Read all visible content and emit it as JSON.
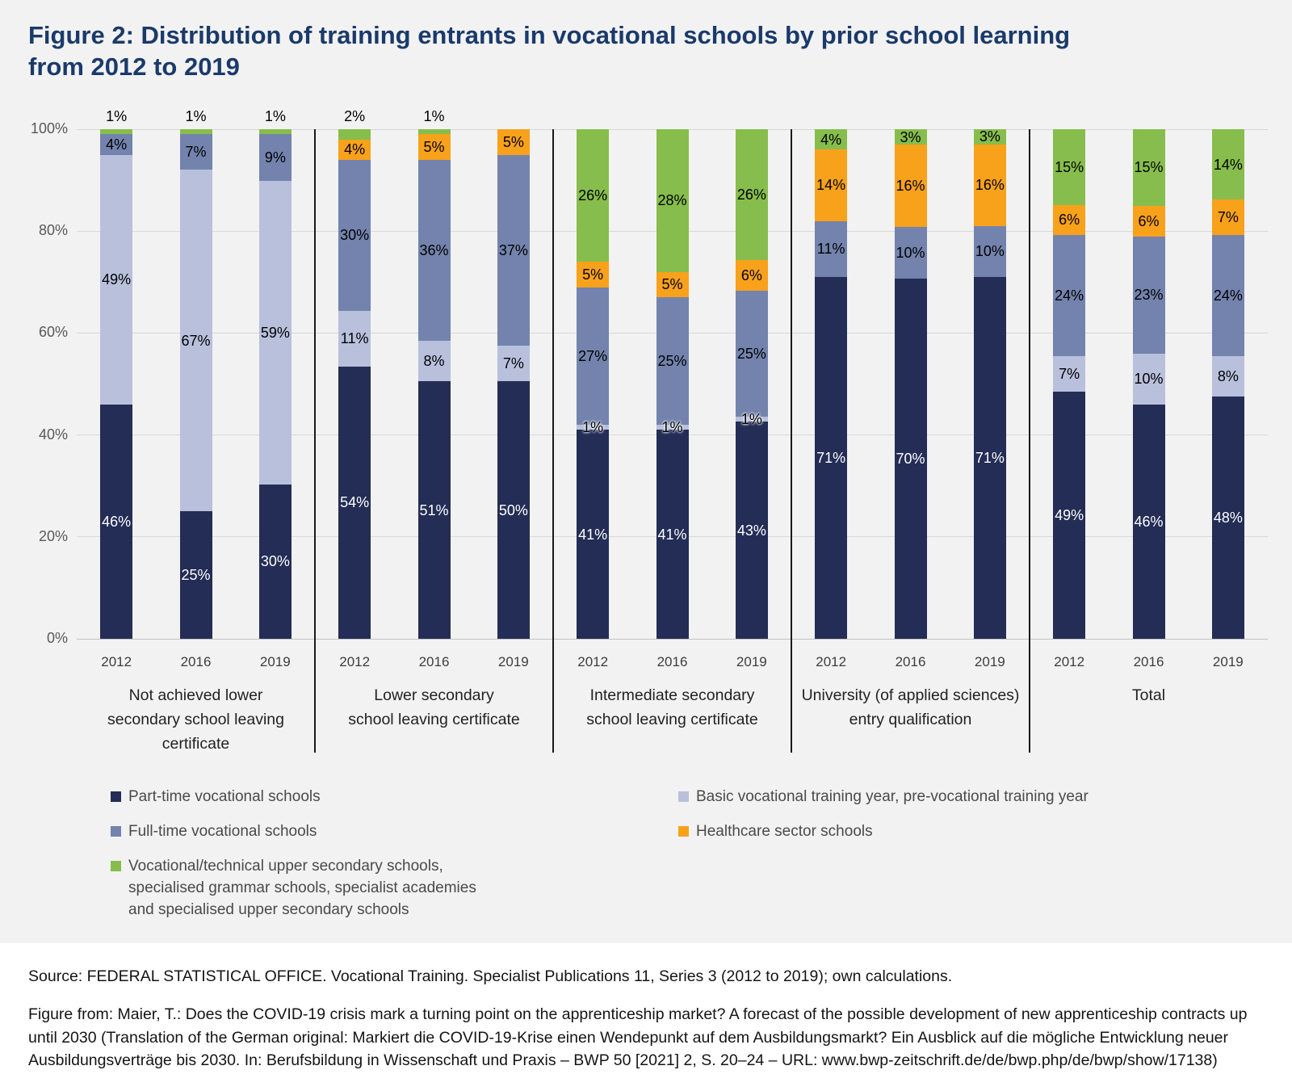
{
  "page": {
    "background": "#f2f2f2",
    "lower_background": "#ffffff"
  },
  "title": {
    "lines": [
      "Figure 2: Distribution of training entrants in vocational schools by prior school learning",
      "from 2012 to 2019"
    ],
    "color": "#1a3a6b"
  },
  "chart_data": {
    "type": "bar",
    "stacked": true,
    "value_unit": "%",
    "y_axis": {
      "min": 0,
      "max": 100,
      "grid": true,
      "ticks": [
        "0%",
        "20%",
        "40%",
        "60%",
        "80%",
        "100%"
      ]
    },
    "series_order": [
      "part_time",
      "basic",
      "full_time",
      "healthcare",
      "upper"
    ],
    "series_labels": {
      "part_time": "Part-time vocational schools",
      "basic": "Basic vocational training year, pre-vocational training year",
      "full_time": "Full-time vocational schools",
      "healthcare": "Healthcare sector schools",
      "upper": "Vocational/technical upper secondary schools, specialised grammar schools, specialist academies and specialised upper secondary schools"
    },
    "colors": {
      "part_time": "#232d55",
      "basic": "#b8c0dc",
      "full_time": "#7383ad",
      "healthcare": "#f8a11b",
      "upper": "#87bd4c"
    },
    "label_text_colors": {
      "part_time": "#ffffff",
      "basic": "#000000",
      "full_time": "#000000",
      "healthcare": "#000000",
      "upper": "#000000"
    },
    "groups": [
      {
        "label_lines": [
          "Not achieved lower",
          "secondary school leaving",
          "certificate"
        ],
        "bars": [
          {
            "year": "2012",
            "values": {
              "part_time": 46,
              "basic": 49,
              "full_time": 4,
              "healthcare": 0,
              "upper": 1
            }
          },
          {
            "year": "2016",
            "values": {
              "part_time": 25,
              "basic": 67,
              "full_time": 7,
              "healthcare": 0,
              "upper": 1
            }
          },
          {
            "year": "2019",
            "values": {
              "part_time": 30,
              "basic": 59,
              "full_time": 9,
              "healthcare": 0,
              "upper": 1
            }
          }
        ]
      },
      {
        "label_lines": [
          "Lower secondary",
          "school leaving certificate"
        ],
        "bars": [
          {
            "year": "2012",
            "values": {
              "part_time": 54,
              "basic": 11,
              "full_time": 30,
              "healthcare": 4,
              "upper": 2
            }
          },
          {
            "year": "2016",
            "values": {
              "part_time": 51,
              "basic": 8,
              "full_time": 36,
              "healthcare": 5,
              "upper": 1
            }
          },
          {
            "year": "2019",
            "values": {
              "part_time": 50,
              "basic": 7,
              "full_time": 37,
              "healthcare": 5,
              "upper": 0
            }
          }
        ]
      },
      {
        "label_lines": [
          "Intermediate secondary",
          "school leaving certificate"
        ],
        "bars": [
          {
            "year": "2012",
            "values": {
              "part_time": 41,
              "basic": 1,
              "full_time": 27,
              "healthcare": 5,
              "upper": 26
            }
          },
          {
            "year": "2016",
            "values": {
              "part_time": 41,
              "basic": 1,
              "full_time": 25,
              "healthcare": 5,
              "upper": 28
            }
          },
          {
            "year": "2019",
            "values": {
              "part_time": 43,
              "basic": 1,
              "full_time": 25,
              "healthcare": 6,
              "upper": 26
            }
          }
        ]
      },
      {
        "label_lines": [
          "University (of applied sciences)",
          "entry qualification"
        ],
        "bars": [
          {
            "year": "2012",
            "values": {
              "part_time": 71,
              "basic": 0,
              "full_time": 11,
              "healthcare": 14,
              "upper": 4
            }
          },
          {
            "year": "2016",
            "values": {
              "part_time": 70,
              "basic": 0,
              "full_time": 10,
              "healthcare": 16,
              "upper": 3
            }
          },
          {
            "year": "2019",
            "values": {
              "part_time": 71,
              "basic": 0,
              "full_time": 10,
              "healthcare": 16,
              "upper": 3
            }
          }
        ]
      },
      {
        "label_lines": [
          "Total"
        ],
        "bars": [
          {
            "year": "2012",
            "values": {
              "part_time": 49,
              "basic": 7,
              "full_time": 24,
              "healthcare": 6,
              "upper": 15
            }
          },
          {
            "year": "2016",
            "values": {
              "part_time": 46,
              "basic": 10,
              "full_time": 23,
              "healthcare": 6,
              "upper": 15
            }
          },
          {
            "year": "2019",
            "values": {
              "part_time": 48,
              "basic": 8,
              "full_time": 24,
              "healthcare": 7,
              "upper": 14
            }
          }
        ]
      }
    ],
    "legend": {
      "left": [
        {
          "key": "part_time",
          "lines": [
            "Part-time vocational schools"
          ]
        },
        {
          "key": "full_time",
          "lines": [
            "Full-time vocational schools"
          ]
        },
        {
          "key": "upper",
          "lines": [
            "Vocational/technical upper secondary schools,",
            "specialised grammar schools, specialist academies",
            "and specialised upper secondary schools"
          ]
        }
      ],
      "right": [
        {
          "key": "basic",
          "lines": [
            "Basic vocational training year, pre-vocational training year"
          ]
        },
        {
          "key": "healthcare",
          "lines": [
            "Healthcare sector schools"
          ]
        }
      ]
    },
    "legend_position": "bottom"
  },
  "footer": {
    "source": "Source: FEDERAL STATISTICAL OFFICE. Vocational Training. Specialist Publications 11, Series 3 (2012 to 2019); own calculations.",
    "figure_from": "Figure from: Maier, T.: Does the COVID-19 crisis mark a turning point on the apprenticeship market? A forecast of the possible development of new apprenticeship contracts up until 2030 (Translation of the German original: Markiert die COVID-19-Krise einen Wendepunkt auf dem Ausbildungsmarkt? Ein Ausblick auf die mögliche Entwicklung neuer Ausbildungsverträge bis 2030. In: Berufsbildung in Wissenschaft und Praxis – BWP 50 [2021] 2, S. 20–24 – URL: www.bwp-zeitschrift.de/de/bwp.php/de/bwp/show/17138)"
  }
}
